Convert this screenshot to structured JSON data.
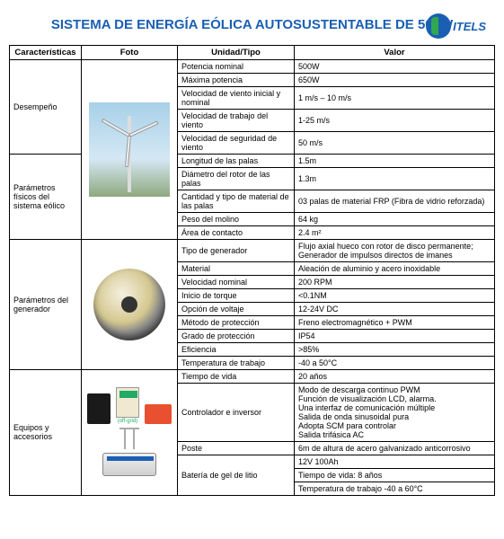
{
  "title": "SISTEMA DE ENERGÍA EÓLICA\nAUTOSUSTENTABLE\nDE 500W",
  "logo_text": "ITELS",
  "headers": {
    "c1": "Características",
    "c2": "Foto",
    "c3": "Unidad/Tipo",
    "c4": "Valor"
  },
  "cat": {
    "desempeno": "Desempeño",
    "parametros_fisicos": "Parámetros físicos del sistema eólico",
    "parametros_generador": "Parámetros del generador",
    "equipos": "Equipos y accesorios"
  },
  "rows": {
    "r1": {
      "u": "Potencia nominal",
      "v": "500W"
    },
    "r2": {
      "u": "Máxima potencia",
      "v": "650W"
    },
    "r3": {
      "u": "Velocidad de viento inicial y nominal",
      "v": "1 m/s – 10 m/s"
    },
    "r4": {
      "u": "Velocidad de trabajo del viento",
      "v": "1-25 m/s"
    },
    "r5": {
      "u": "Velocidad de seguridad de viento",
      "v": "50 m/s"
    },
    "r6": {
      "u": "Longitud de las palas",
      "v": "1.5m"
    },
    "r7": {
      "u": "Diámetro del rotor de las palas",
      "v": "1.3m"
    },
    "r8": {
      "u": "Cantidad y tipo de material de las palas",
      "v": "03 palas de material FRP (Fibra de vidrio reforzada)"
    },
    "r9": {
      "u": "Peso del molino",
      "v": "64 kg"
    },
    "r10": {
      "u": "Área de contacto",
      "v": "2.4 m²"
    },
    "r11": {
      "u": "Tipo de generador",
      "v": "Flujo axial hueco con rotor de disco permanente; Generador de impulsos directos de imanes"
    },
    "r12": {
      "u": "Material",
      "v": "Aleación de aluminio y acero inoxidable"
    },
    "r13": {
      "u": "Velocidad nominal",
      "v": "200 RPM"
    },
    "r14": {
      "u": "Inicio de torque",
      "v": "<0.1NM"
    },
    "r15": {
      "u": "Opción de voltaje",
      "v": "12-24V DC"
    },
    "r16": {
      "u": "Método de protección",
      "v": "Freno electromagnético + PWM"
    },
    "r17": {
      "u": "Grado de protección",
      "v": "IP54"
    },
    "r18": {
      "u": "Eficiencia",
      "v": ">85%"
    },
    "r19": {
      "u": "Temperatura de trabajo",
      "v": "-40 a 50°C"
    },
    "r20": {
      "u": "Tiempo de vida",
      "v": "20 años"
    },
    "r21": {
      "u": "Controlador e inversor",
      "v": "Modo de descarga continuo PWM\nFunción de visualización LCD, alarma.\nUna interfaz de comunicación múltiple\nSalida de onda sinusoidal pura\nAdopta SCM para controlar\nSalida trifásica AC"
    },
    "r22": {
      "u": "Poste",
      "v": "6m de altura de acero galvanizado anticorrosivo"
    },
    "r23": {
      "u": "Batería de gel de litio",
      "v1": "12V 100Ah",
      "v2": "Tiempo de vida: 8 años",
      "v3": "Temperatura de trabajo -40 a 60°C"
    }
  },
  "offgrid_label": "(off-grid)",
  "colors": {
    "primary": "#1a5fb4",
    "border": "#000000",
    "background": "#ffffff"
  }
}
